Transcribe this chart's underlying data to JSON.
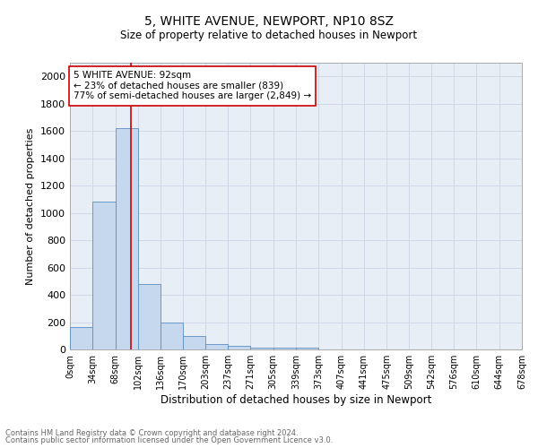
{
  "title1": "5, WHITE AVENUE, NEWPORT, NP10 8SZ",
  "title2": "Size of property relative to detached houses in Newport",
  "xlabel": "Distribution of detached houses by size in Newport",
  "ylabel": "Number of detached properties",
  "bin_labels": [
    "0sqm",
    "34sqm",
    "68sqm",
    "102sqm",
    "136sqm",
    "170sqm",
    "203sqm",
    "237sqm",
    "271sqm",
    "305sqm",
    "339sqm",
    "373sqm",
    "407sqm",
    "441sqm",
    "475sqm",
    "509sqm",
    "542sqm",
    "576sqm",
    "610sqm",
    "644sqm",
    "678sqm"
  ],
  "bin_edges": [
    0,
    34,
    68,
    102,
    136,
    170,
    203,
    237,
    271,
    305,
    339,
    373,
    407,
    441,
    475,
    509,
    542,
    576,
    610,
    644,
    678
  ],
  "bar_heights": [
    165,
    1080,
    1620,
    480,
    200,
    100,
    40,
    25,
    15,
    15,
    15,
    0,
    0,
    0,
    0,
    0,
    0,
    0,
    0,
    0
  ],
  "bar_color": "#c5d8ee",
  "bar_edge_color": "#5b8ec4",
  "grid_color": "#d0d8e8",
  "bg_color": "#e8eef6",
  "property_line_x": 92,
  "property_line_color": "#cc0000",
  "annotation_text": "5 WHITE AVENUE: 92sqm\n← 23% of detached houses are smaller (839)\n77% of semi-detached houses are larger (2,849) →",
  "annotation_box_color": "#ffffff",
  "annotation_box_edge": "#cc0000",
  "footer1": "Contains HM Land Registry data © Crown copyright and database right 2024.",
  "footer2": "Contains public sector information licensed under the Open Government Licence v3.0.",
  "ylim": [
    0,
    2100
  ],
  "yticks": [
    0,
    200,
    400,
    600,
    800,
    1000,
    1200,
    1400,
    1600,
    1800,
    2000
  ]
}
